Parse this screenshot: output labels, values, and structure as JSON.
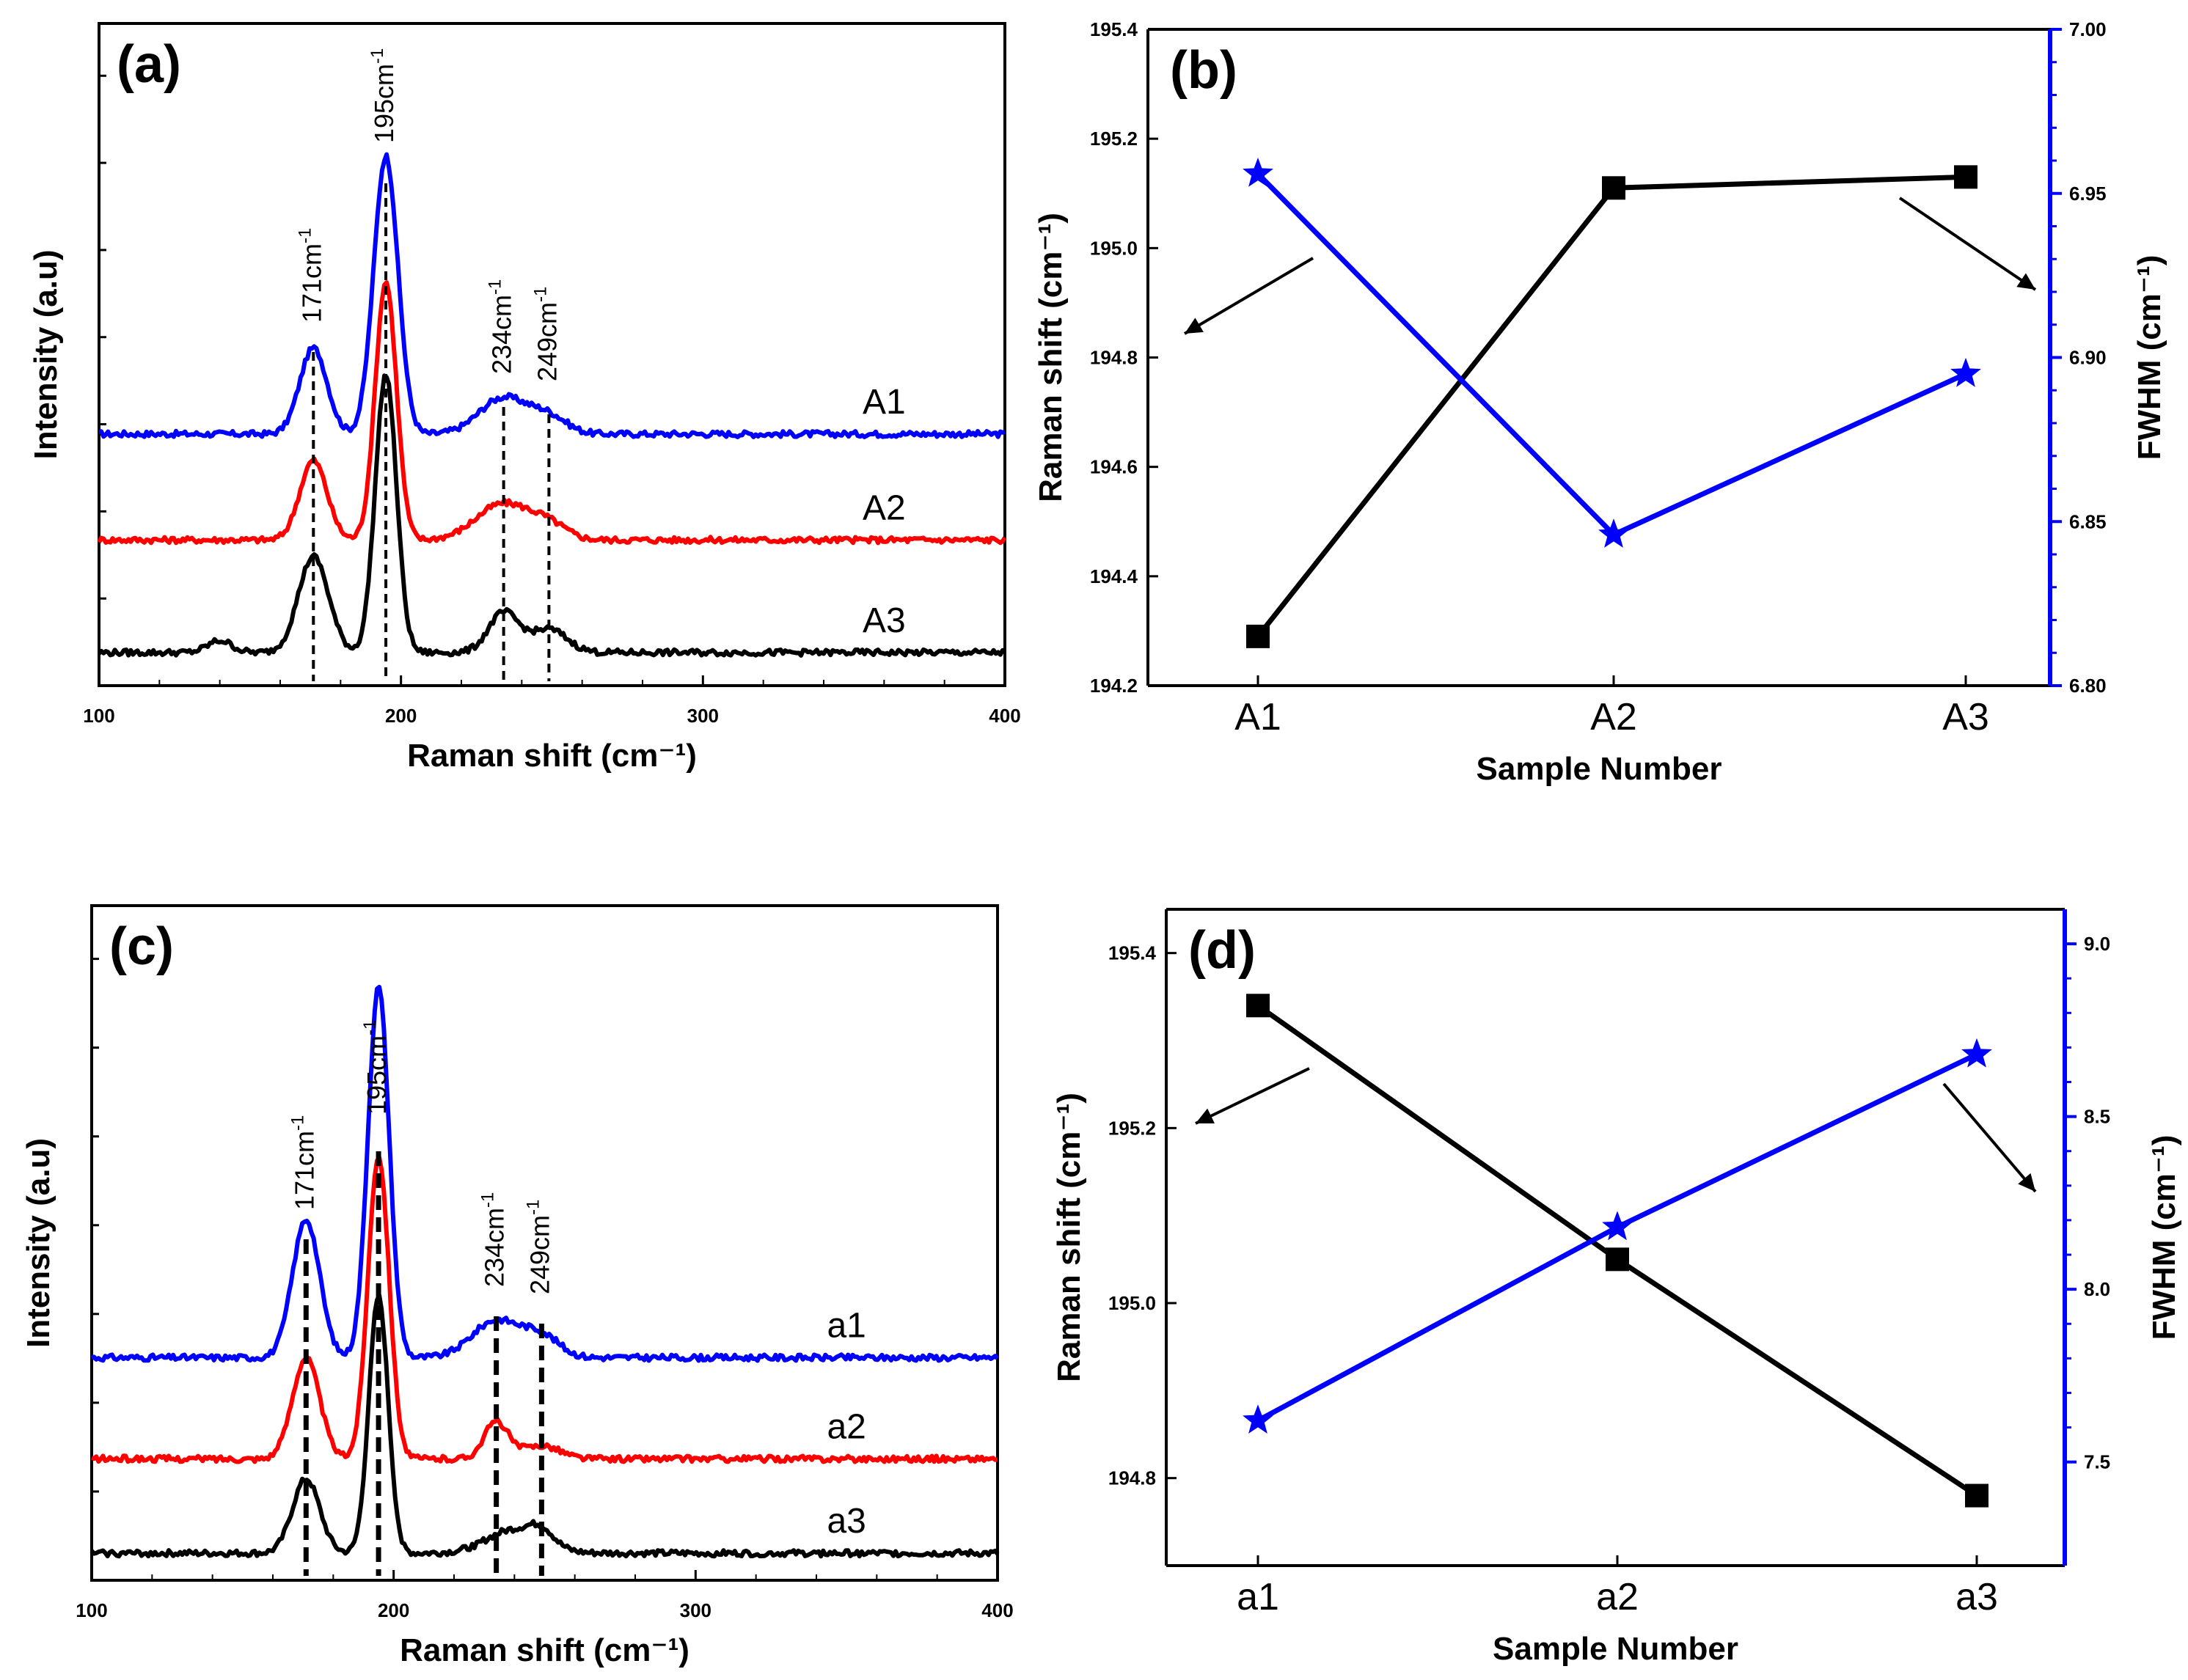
{
  "chart_data": [
    {
      "id": "a",
      "type": "line",
      "panel_label": "(a)",
      "xlabel": "Raman shift (cm⁻¹)",
      "ylabel": "Intensity (a.u)",
      "xlim": [
        100,
        400
      ],
      "xticks": [
        "100",
        "200",
        "300",
        "400"
      ],
      "series": [
        {
          "name": "A1",
          "color": "#0000ff",
          "baseline": 0.38,
          "peaks": [
            [
              171,
              0.13,
              4.5
            ],
            [
              195,
              0.42,
              4.0
            ],
            [
              234,
              0.055,
              8
            ],
            [
              249,
              0.025,
              6
            ]
          ]
        },
        {
          "name": "A2",
          "color": "#ff0000",
          "baseline": 0.22,
          "peaks": [
            [
              171,
              0.12,
              4.5
            ],
            [
              195,
              0.39,
              3.5
            ],
            [
              234,
              0.055,
              9
            ],
            [
              249,
              0.02,
              6
            ]
          ]
        },
        {
          "name": "A3",
          "color": "#000000",
          "baseline": 0.05,
          "peaks": [
            [
              140,
              0.018,
              4
            ],
            [
              171,
              0.145,
              5
            ],
            [
              195,
              0.42,
              3.5
            ],
            [
              234,
              0.06,
              5
            ],
            [
              249,
              0.035,
              6
            ]
          ]
        }
      ],
      "peak_labels": [
        {
          "x": 171,
          "label": "171cm",
          "sup": "-1"
        },
        {
          "x": 195,
          "label": "195cm",
          "sup": "-1"
        },
        {
          "x": 234,
          "label": "234cm",
          "sup": "-1"
        },
        {
          "x": 249,
          "label": "249cm",
          "sup": "-1"
        }
      ]
    },
    {
      "id": "b",
      "type": "line",
      "panel_label": "(b)",
      "xlabel": "Sample Number",
      "ylabel": "Raman shift (cm⁻¹)",
      "ylabel_right": "FWHM (cm⁻¹)",
      "categories": [
        "A1",
        "A2",
        "A3"
      ],
      "ylim": [
        194.2,
        195.4
      ],
      "yticks": [
        "194.2",
        "194.4",
        "194.6",
        "194.8",
        "195.0",
        "195.2",
        "195.4"
      ],
      "ylim_right": [
        6.8,
        7.0
      ],
      "yticks_right": [
        "6.80",
        "6.85",
        "6.90",
        "6.95",
        "7.00"
      ],
      "series": [
        {
          "name": "Raman shift",
          "axis": "left",
          "color": "#000000",
          "marker": "square",
          "values": [
            194.29,
            195.11,
            195.13
          ]
        },
        {
          "name": "FWHM",
          "axis": "right",
          "color": "#0000ff",
          "marker": "star",
          "values": [
            6.956,
            6.846,
            6.895
          ]
        }
      ]
    },
    {
      "id": "c",
      "type": "line",
      "panel_label": "(c)",
      "xlabel": "Raman shift (cm⁻¹)",
      "ylabel": "Intensity (a.u)",
      "xlim": [
        100,
        400
      ],
      "xticks": [
        "100",
        "200",
        "300",
        "400"
      ],
      "series": [
        {
          "name": "a1",
          "color": "#0000ff",
          "baseline": 0.33,
          "peaks": [
            [
              171,
              0.205,
              4.5
            ],
            [
              195,
              0.55,
              3.5
            ],
            [
              234,
              0.055,
              8
            ],
            [
              249,
              0.03,
              6
            ]
          ]
        },
        {
          "name": "a2",
          "color": "#ff0000",
          "baseline": 0.18,
          "peaks": [
            [
              171,
              0.15,
              4.5
            ],
            [
              195,
              0.45,
              3.5
            ],
            [
              234,
              0.055,
              4
            ],
            [
              249,
              0.02,
              6
            ]
          ]
        },
        {
          "name": "a3",
          "color": "#000000",
          "baseline": 0.04,
          "peaks": [
            [
              171,
              0.11,
              4.5
            ],
            [
              195,
              0.38,
              3.2
            ],
            [
              240,
              0.035,
              9
            ],
            [
              249,
              0.02,
              4
            ]
          ]
        }
      ],
      "peak_labels": [
        {
          "x": 171,
          "label": "171cm",
          "sup": "-1"
        },
        {
          "x": 195,
          "label": "195cm",
          "sup": "-1"
        },
        {
          "x": 234,
          "label": "234cm",
          "sup": "-1"
        },
        {
          "x": 249,
          "label": "249cm",
          "sup": "-1"
        }
      ]
    },
    {
      "id": "d",
      "type": "line",
      "panel_label": "(d)",
      "xlabel": "Sample Number",
      "ylabel": "Raman shift (cm⁻¹)",
      "ylabel_right": "FWHM (cm⁻¹)",
      "categories": [
        "a1",
        "a2",
        "a3"
      ],
      "ylim": [
        194.7,
        195.45
      ],
      "yticks": [
        "194.8",
        "195.0",
        "195.2",
        "195.4"
      ],
      "ylim_right": [
        7.2,
        9.1
      ],
      "yticks_right": [
        "7.5",
        "8.0",
        "8.5",
        "9.0"
      ],
      "series": [
        {
          "name": "Raman shift",
          "axis": "left",
          "color": "#000000",
          "marker": "square",
          "values": [
            195.34,
            195.05,
            194.78
          ]
        },
        {
          "name": "FWHM",
          "axis": "right",
          "color": "#0000ff",
          "marker": "star",
          "values": [
            7.62,
            8.18,
            8.68
          ]
        }
      ]
    }
  ]
}
